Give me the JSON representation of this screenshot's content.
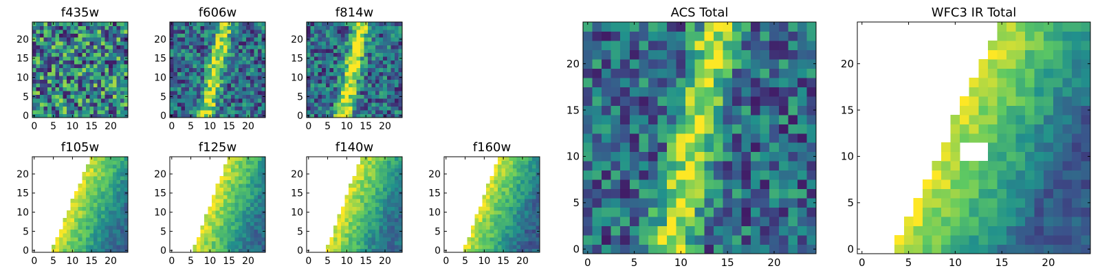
{
  "figure": {
    "colormap": [
      "#440154",
      "#3b528b",
      "#21918c",
      "#5ec962",
      "#fde725"
    ]
  },
  "chart_data": [
    {
      "type": "heatmap",
      "title": "f435w",
      "grid": [
        25,
        25
      ],
      "xlim": [
        0,
        25
      ],
      "ylim": [
        0,
        25
      ],
      "xticks": [
        0,
        5,
        10,
        15,
        20
      ],
      "yticks": [
        0,
        5,
        10,
        15,
        20
      ],
      "seed": 11,
      "pattern": "noise",
      "feature_strength": 0.18,
      "mask": null
    },
    {
      "type": "heatmap",
      "title": "f606w",
      "grid": [
        25,
        25
      ],
      "xlim": [
        0,
        25
      ],
      "ylim": [
        0,
        25
      ],
      "xticks": [
        0,
        5,
        10,
        15,
        20
      ],
      "yticks": [
        0,
        5,
        10,
        15,
        20
      ],
      "seed": 23,
      "pattern": "streak",
      "feature_strength": 0.55,
      "mask": null
    },
    {
      "type": "heatmap",
      "title": "f814w",
      "grid": [
        25,
        25
      ],
      "xlim": [
        0,
        25
      ],
      "ylim": [
        0,
        25
      ],
      "xticks": [
        0,
        5,
        10,
        15,
        20
      ],
      "yticks": [
        0,
        5,
        10,
        15,
        20
      ],
      "seed": 37,
      "pattern": "streak",
      "feature_strength": 0.65,
      "mask": null
    },
    {
      "type": "heatmap",
      "title": "f105w",
      "grid": [
        25,
        25
      ],
      "xlim": [
        0,
        25
      ],
      "ylim": [
        0,
        25
      ],
      "xticks": [
        0,
        5,
        10,
        15,
        20
      ],
      "yticks": [
        0,
        5,
        10,
        15,
        20
      ],
      "seed": 41,
      "pattern": "ir",
      "feature_strength": 0.8,
      "mask": {
        "bottom_x": 5,
        "top_x": 15
      }
    },
    {
      "type": "heatmap",
      "title": "f125w",
      "grid": [
        25,
        25
      ],
      "xlim": [
        0,
        25
      ],
      "ylim": [
        0,
        25
      ],
      "xticks": [
        0,
        5,
        10,
        15,
        20
      ],
      "yticks": [
        0,
        5,
        10,
        15,
        20
      ],
      "seed": 53,
      "pattern": "ir",
      "feature_strength": 0.8,
      "mask": {
        "bottom_x": 6,
        "top_x": 15
      }
    },
    {
      "type": "heatmap",
      "title": "f140w",
      "grid": [
        25,
        25
      ],
      "xlim": [
        0,
        25
      ],
      "ylim": [
        0,
        25
      ],
      "xticks": [
        0,
        5,
        10,
        15,
        20
      ],
      "yticks": [
        0,
        5,
        10,
        15,
        20
      ],
      "seed": 67,
      "pattern": "ir",
      "feature_strength": 0.8,
      "mask": {
        "bottom_x": 5,
        "top_x": 14
      }
    },
    {
      "type": "heatmap",
      "title": "f160w",
      "grid": [
        25,
        25
      ],
      "xlim": [
        0,
        25
      ],
      "ylim": [
        0,
        25
      ],
      "xticks": [
        0,
        5,
        10,
        15,
        20
      ],
      "yticks": [
        0,
        5,
        10,
        15,
        20
      ],
      "seed": 79,
      "pattern": "ir",
      "feature_strength": 0.85,
      "mask": {
        "bottom_x": 5,
        "top_x": 14
      }
    },
    {
      "type": "heatmap",
      "title": "ACS Total",
      "grid": [
        25,
        25
      ],
      "xlim": [
        0,
        25
      ],
      "ylim": [
        0,
        25
      ],
      "xticks": [
        0,
        5,
        10,
        15,
        20
      ],
      "yticks": [
        0,
        5,
        10,
        15,
        20
      ],
      "seed": 97,
      "pattern": "streak",
      "feature_strength": 0.6,
      "mask": null
    },
    {
      "type": "heatmap",
      "title": "WFC3 IR Total",
      "grid": [
        25,
        25
      ],
      "xlim": [
        0,
        25
      ],
      "ylim": [
        0,
        25
      ],
      "xticks": [
        0,
        5,
        10,
        15,
        20
      ],
      "yticks": [
        0,
        5,
        10,
        15,
        20
      ],
      "seed": 103,
      "pattern": "ir",
      "feature_strength": 0.9,
      "mask": {
        "bottom_x": 4,
        "top_x": 15,
        "hole": {
          "x0": 11,
          "x1": 13,
          "y0": 10,
          "y1": 11
        }
      }
    }
  ]
}
